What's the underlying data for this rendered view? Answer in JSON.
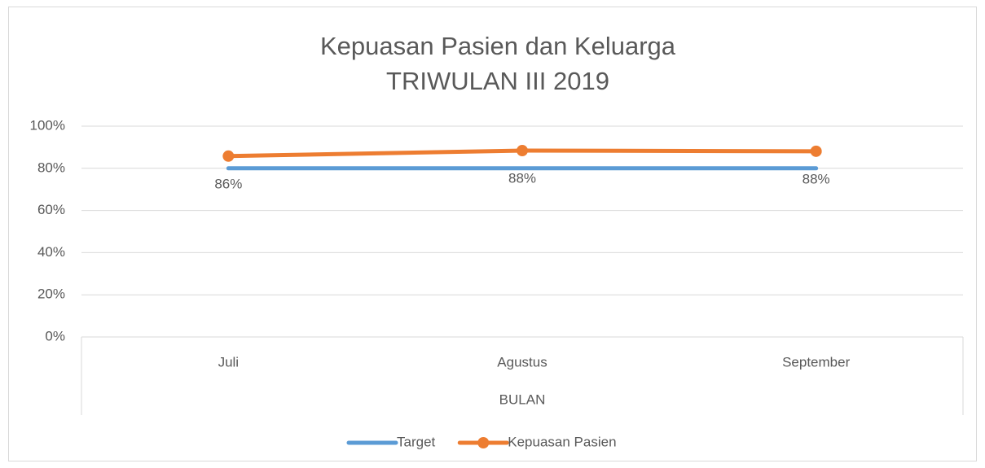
{
  "chart_data": {
    "type": "line",
    "title": "Kepuasan Pasien dan Keluarga",
    "subtitle": "TRIWULAN III 2019",
    "x_label": "BULAN",
    "categories": [
      "Juli",
      "Agustus",
      "September"
    ],
    "series": [
      {
        "name": "Target",
        "color": "#5b9bd5",
        "values": [
          80,
          80,
          80
        ],
        "markers": false
      },
      {
        "name": "Kepuasan Pasien",
        "color": "#ed7d31",
        "values": [
          85.8,
          88.4,
          88.1
        ],
        "value_labels": [
          "86%",
          "88%",
          "88%"
        ],
        "markers": true
      }
    ],
    "ylim": [
      0,
      100
    ],
    "yticks": [
      {
        "value": 0,
        "label": "0%"
      },
      {
        "value": 20,
        "label": "20%"
      },
      {
        "value": 40,
        "label": "40%"
      },
      {
        "value": 60,
        "label": "60%"
      },
      {
        "value": 80,
        "label": "80%"
      },
      {
        "value": 100,
        "label": "100%"
      }
    ],
    "grid": true,
    "legend": "bottom"
  }
}
